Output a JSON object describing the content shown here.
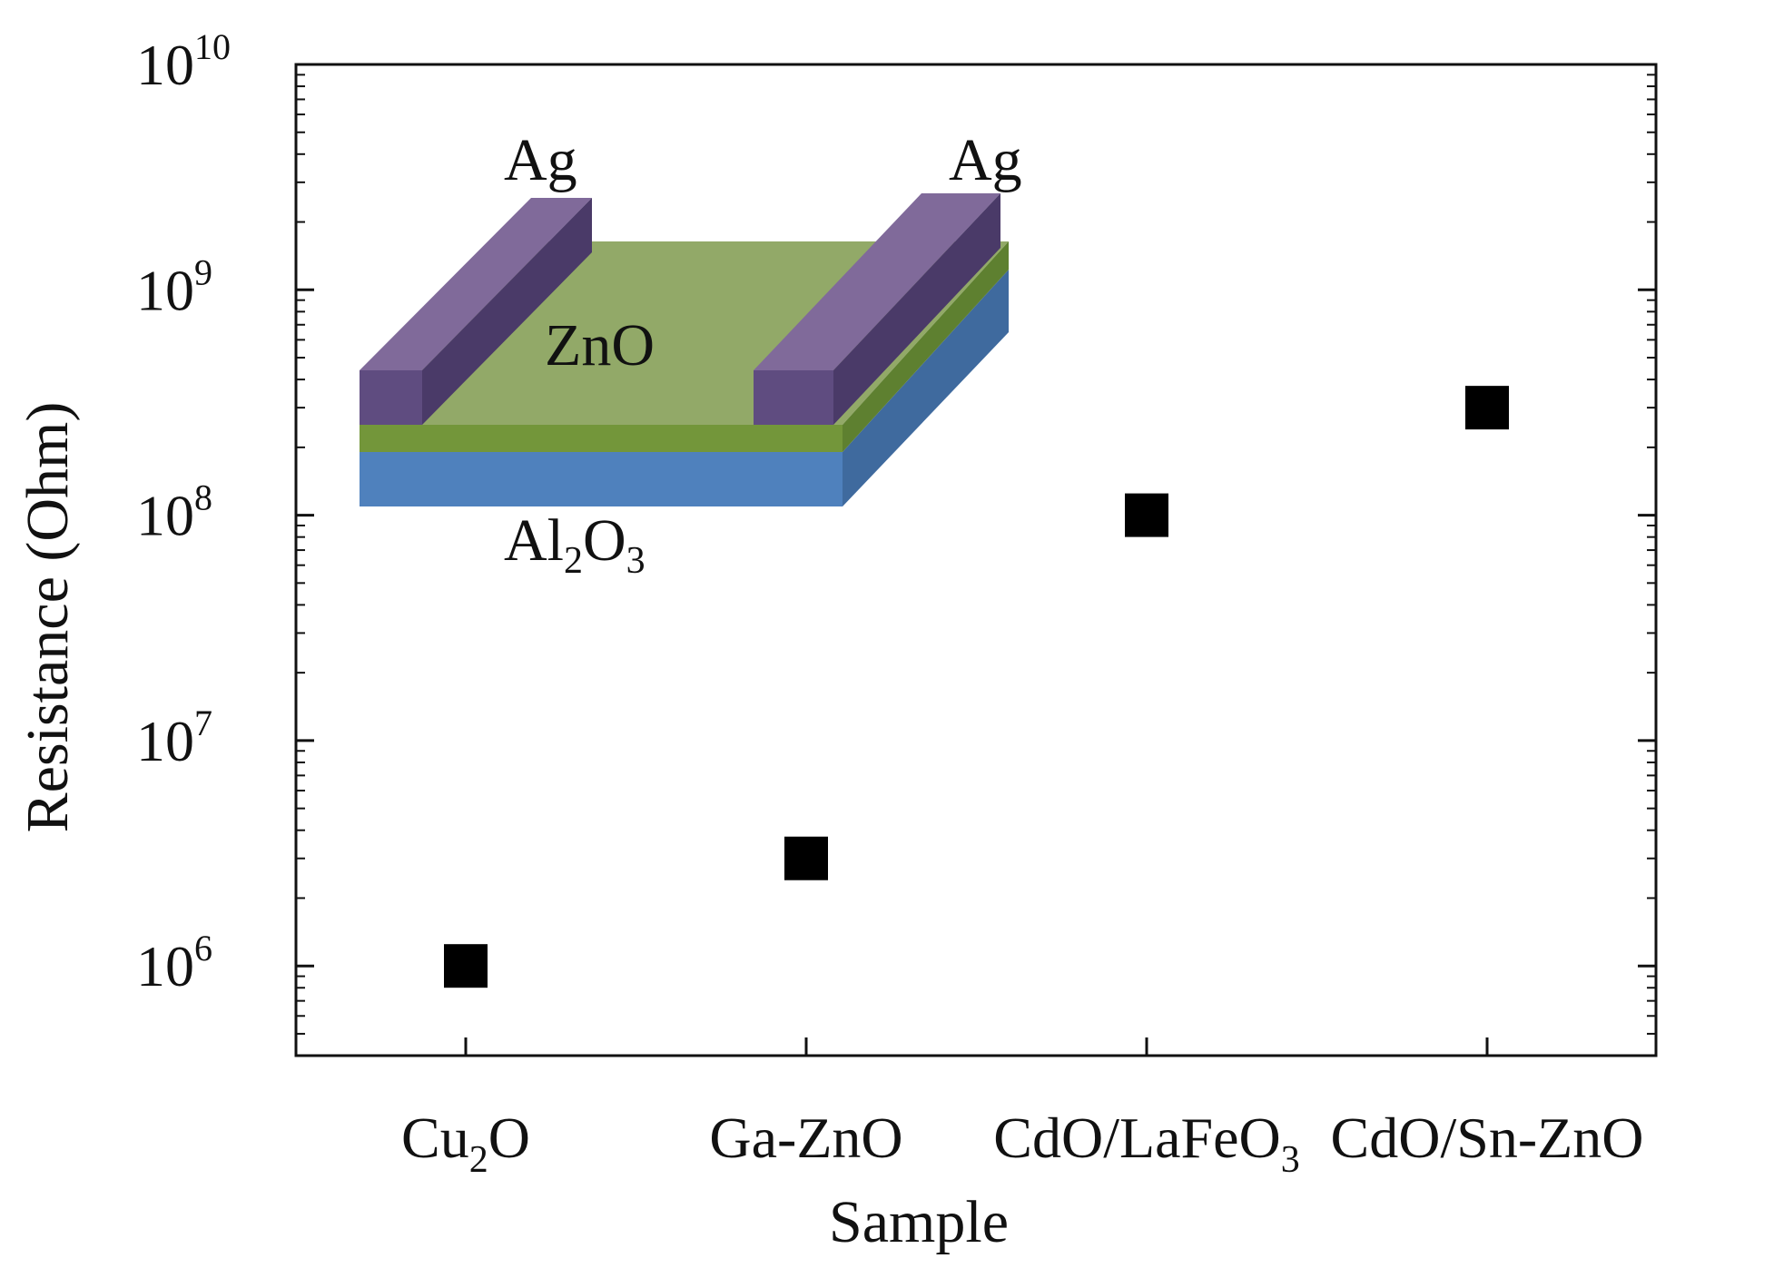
{
  "chart_data": {
    "type": "scatter",
    "title": "",
    "xlabel": "Sample",
    "ylabel": "Resistance (Ohm)",
    "yscale": "log",
    "ylim": [
      400000,
      10000000000
    ],
    "y_ticks": [
      {
        "base": "10",
        "exp": "6",
        "value": 1000000
      },
      {
        "base": "10",
        "exp": "7",
        "value": 10000000
      },
      {
        "base": "10",
        "exp": "8",
        "value": 100000000
      },
      {
        "base": "10",
        "exp": "9",
        "value": 1000000000
      },
      {
        "base": "10",
        "exp": "10",
        "value": 10000000000
      }
    ],
    "categories": [
      {
        "main": "Cu",
        "sub": "2",
        "tail": "O"
      },
      {
        "main": "Ga-ZnO",
        "sub": "",
        "tail": ""
      },
      {
        "main": "CdO/LaFeO",
        "sub": "3",
        "tail": ""
      },
      {
        "main": "CdO/Sn-ZnO",
        "sub": "",
        "tail": ""
      }
    ],
    "values": [
      1000000,
      3000000,
      100000000,
      300000000
    ],
    "marker": "square",
    "marker_color": "#000000"
  },
  "inset": {
    "electrode_left": "Ag",
    "electrode_right": "Ag",
    "film": "ZnO",
    "substrate": {
      "main": "Al",
      "sub1": "2",
      "mid": "O",
      "sub2": "3"
    },
    "colors": {
      "electrode_top": "#806A9A",
      "electrode_front": "#5F4C80",
      "electrode_side": "#4A3A68",
      "film_top": "#92A968",
      "film_front": "#73963A",
      "film_side": "#5E8030",
      "substrate_front": "#4F81BD",
      "substrate_side": "#3F6A9E"
    }
  }
}
